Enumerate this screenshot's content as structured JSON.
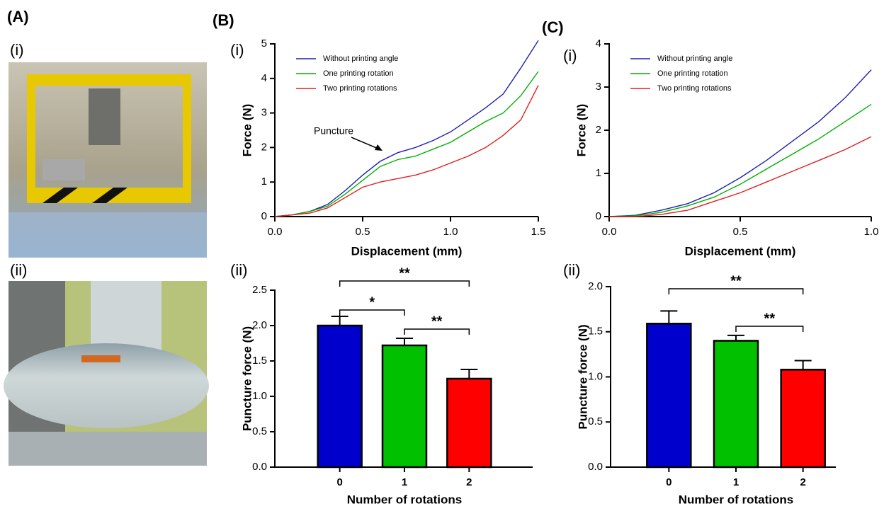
{
  "panels": [
    "(A)",
    "(i)",
    "(ii)",
    "(B)",
    "(i)",
    "(ii)",
    "(C)",
    "(i)",
    "(ii)"
  ],
  "chart_data": [
    {
      "type": "line",
      "x_label": "Displacement (mm)",
      "y_label": "Force (N)",
      "x": [
        0,
        0.1,
        0.2,
        0.3,
        0.4,
        0.5,
        0.6,
        0.7,
        0.8,
        0.9,
        1.0,
        1.1,
        1.2,
        1.3,
        1.4,
        1.5
      ],
      "series": [
        {
          "name": "Without printing angle",
          "color": "#1f1fb4",
          "values": [
            0,
            0.05,
            0.15,
            0.35,
            0.75,
            1.2,
            1.6,
            1.85,
            2.0,
            2.2,
            2.45,
            2.8,
            3.15,
            3.55,
            4.3,
            5.1
          ]
        },
        {
          "name": "One printing rotation",
          "color": "#00b000",
          "values": [
            0,
            0.05,
            0.15,
            0.3,
            0.65,
            1.05,
            1.45,
            1.65,
            1.75,
            1.95,
            2.15,
            2.45,
            2.75,
            3.0,
            3.5,
            4.2
          ]
        },
        {
          "name": "Two printing rotations",
          "color": "#e02020",
          "values": [
            0,
            0.05,
            0.1,
            0.25,
            0.55,
            0.85,
            1.0,
            1.1,
            1.2,
            1.35,
            1.55,
            1.75,
            2.0,
            2.35,
            2.8,
            3.8
          ]
        }
      ],
      "xlim": [
        0,
        1.5
      ],
      "xticks": [
        {
          "value": 0,
          "label": "0.0"
        },
        0.5,
        {
          "value": 1,
          "label": "1.0"
        },
        1.5
      ],
      "ylim": [
        0,
        5
      ],
      "yticks": [
        0,
        1,
        2,
        3,
        4,
        5
      ],
      "annotations": [
        {
          "text": "Puncture"
        }
      ]
    },
    {
      "type": "line",
      "x_label": "Displacement (mm)",
      "y_label": "Force (N)",
      "x": [
        0,
        0.1,
        0.2,
        0.3,
        0.4,
        0.5,
        0.6,
        0.7,
        0.8,
        0.9,
        1.0
      ],
      "series": [
        {
          "name": "Without printing angle",
          "color": "#1f1fb4",
          "values": [
            0,
            0.03,
            0.15,
            0.3,
            0.55,
            0.9,
            1.3,
            1.75,
            2.2,
            2.75,
            3.4
          ]
        },
        {
          "name": "One printing rotation",
          "color": "#00b000",
          "values": [
            0,
            0.02,
            0.1,
            0.25,
            0.45,
            0.75,
            1.1,
            1.45,
            1.8,
            2.2,
            2.6
          ]
        },
        {
          "name": "Two printing rotations",
          "color": "#e02020",
          "values": [
            0,
            0,
            0.05,
            0.15,
            0.35,
            0.55,
            0.8,
            1.05,
            1.3,
            1.55,
            1.85
          ]
        }
      ],
      "xlim": [
        0,
        1
      ],
      "xticks": [
        {
          "value": 0,
          "label": "0.0"
        },
        0.5,
        {
          "value": 1,
          "label": "1.0"
        }
      ],
      "ylim": [
        0,
        4
      ],
      "yticks": [
        0,
        1,
        2,
        3,
        4
      ]
    },
    {
      "type": "bar",
      "x_label": "Number of rotations",
      "y_label": "Puncture force (N)",
      "categories": [
        "0",
        "1",
        "2"
      ],
      "values": [
        2.0,
        1.72,
        1.25
      ],
      "errors": [
        0.13,
        0.1,
        0.13
      ],
      "colors": [
        "#0000cc",
        "#00c000",
        "#ff0000"
      ],
      "ylim": [
        0,
        2.5
      ],
      "yticks": [
        {
          "value": 0,
          "label": "0.0"
        },
        0.5,
        {
          "value": 1,
          "label": "1.0"
        },
        1.5,
        {
          "value": 2,
          "label": "2.0"
        },
        2.5
      ],
      "significance": [
        {
          "from": 0,
          "to": 2,
          "label": "**"
        },
        {
          "from": 0,
          "to": 1,
          "label": "*"
        },
        {
          "from": 1,
          "to": 2,
          "label": "**"
        }
      ]
    },
    {
      "type": "bar",
      "x_label": "Number of rotations",
      "y_label": "Puncture force (N)",
      "categories": [
        "0",
        "1",
        "2"
      ],
      "values": [
        1.59,
        1.4,
        1.08
      ],
      "errors": [
        0.14,
        0.06,
        0.1
      ],
      "colors": [
        "#0000cc",
        "#00c000",
        "#ff0000"
      ],
      "ylim": [
        0,
        2
      ],
      "yticks": [
        {
          "value": 0,
          "label": "0.0"
        },
        0.5,
        {
          "value": 1,
          "label": "1.0"
        },
        1.5,
        {
          "value": 2,
          "label": "2.0"
        }
      ],
      "significance": [
        {
          "from": 0,
          "to": 2,
          "label": "**"
        },
        {
          "from": 1,
          "to": 2,
          "label": "**"
        }
      ]
    }
  ]
}
